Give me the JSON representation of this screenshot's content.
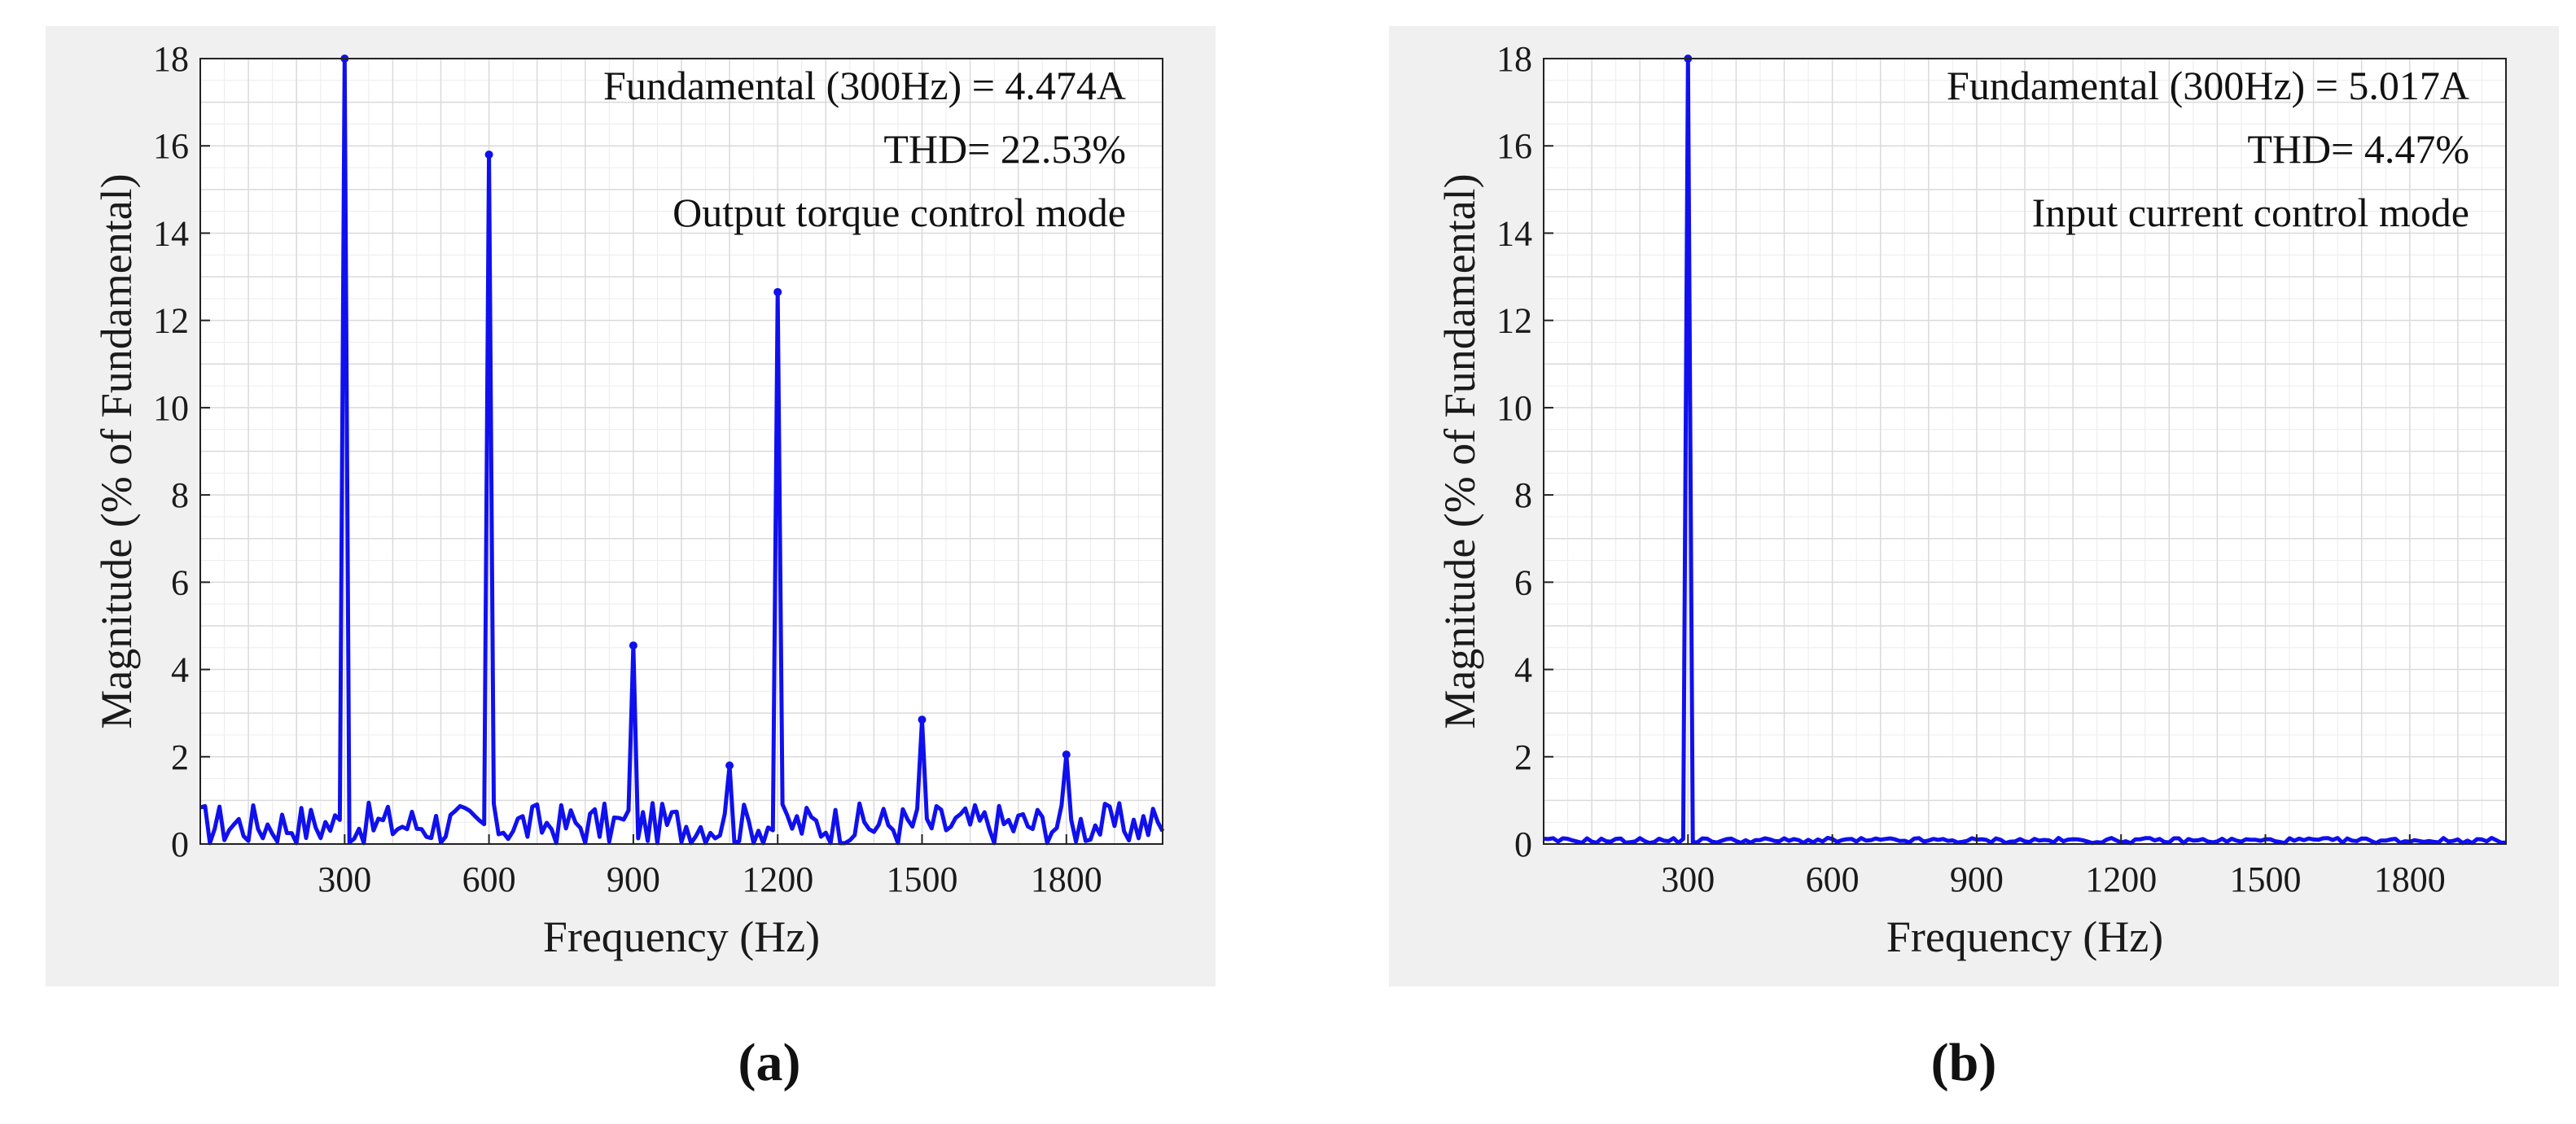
{
  "chart_data": [
    {
      "type": "line",
      "panel": "a",
      "caption": "(a)",
      "xlabel": "Frequency (Hz)",
      "ylabel": "Magnitude (% of Fundamental)",
      "xlim": [
        0,
        2000
      ],
      "ylim": [
        0,
        18
      ],
      "xticks": [
        300,
        600,
        900,
        1200,
        1500,
        1800
      ],
      "xtick_labels": [
        "300",
        "600",
        "900",
        "1200",
        "1500",
        "1800"
      ],
      "yticks": [
        0,
        2,
        4,
        6,
        8,
        10,
        12,
        14,
        16,
        18
      ],
      "ytick_labels": [
        "0",
        "2",
        "4",
        "6",
        "8",
        "10",
        "12",
        "14",
        "16",
        "18"
      ],
      "grid": true,
      "line_color": "#1010ee",
      "annotations": [
        "Fundamental (300Hz) = 4.474A",
        "THD= 22.53%",
        "Output torque control mode"
      ],
      "fundamental_hz": 300,
      "fundamental_current_a": 4.474,
      "thd_percent": 22.53,
      "harmonic_peaks": [
        {
          "f": 300,
          "mag": 18
        },
        {
          "f": 600,
          "mag": 15.8
        },
        {
          "f": 900,
          "mag": 4.55
        },
        {
          "f": 1100,
          "mag": 1.8
        },
        {
          "f": 1200,
          "mag": 12.65
        },
        {
          "f": 1500,
          "mag": 2.85
        },
        {
          "f": 1800,
          "mag": 2.05
        }
      ],
      "noise_floor": 0.45,
      "noise_amplitude": 0.5
    },
    {
      "type": "line",
      "panel": "b",
      "caption": "(b)",
      "xlabel": "Frequency (Hz)",
      "ylabel": "Magnitude (% of Fundamental)",
      "xlim": [
        0,
        2000
      ],
      "ylim": [
        0,
        18
      ],
      "xticks": [
        300,
        600,
        900,
        1200,
        1500,
        1800
      ],
      "xtick_labels": [
        "300",
        "600",
        "900",
        "1200",
        "1500",
        "1800"
      ],
      "yticks": [
        0,
        2,
        4,
        6,
        8,
        10,
        12,
        14,
        16,
        18
      ],
      "ytick_labels": [
        "0",
        "2",
        "4",
        "6",
        "8",
        "10",
        "12",
        "14",
        "16",
        "18"
      ],
      "grid": true,
      "line_color": "#1010ee",
      "annotations": [
        "Fundamental (300Hz) = 5.017A",
        "THD= 4.47%",
        "Input current control mode"
      ],
      "fundamental_hz": 300,
      "fundamental_current_a": 5.017,
      "thd_percent": 4.47,
      "harmonic_peaks": [
        {
          "f": 300,
          "mag": 18
        }
      ],
      "noise_floor": 0.08,
      "noise_amplitude": 0.06
    }
  ]
}
